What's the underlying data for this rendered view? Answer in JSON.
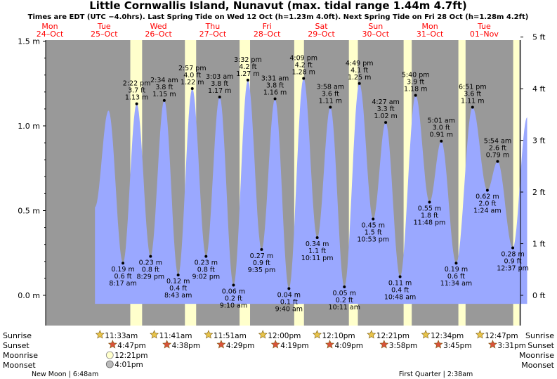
{
  "title": "Little Cornwallis Island, Nunavut (max. tidal range 1.44m 4.7ft)",
  "subtitle": "Times are EDT (UTC −4.0hrs). Last Spring Tide on Wed 12 Oct (h=1.23m 4.0ft). Next Spring Tide on Fri 28 Oct (h=1.28m 4.2ft)",
  "colors": {
    "background": "#999999",
    "day_band": "#ffffcc",
    "tide_fill": "#9aa8ff",
    "day_label": "#ff0000",
    "sun_star": "#e8c44a",
    "sunset_star": "#d9533a"
  },
  "row_labels": {
    "sunrise": "Sunrise",
    "sunset": "Sunset",
    "moonrise": "Moonrise",
    "moonset": "Moonset"
  },
  "moon_phases": [
    {
      "text": "New Moon | 6:48am",
      "day": 0.28
    },
    {
      "text": "First Quarter | 2:38am",
      "day": 7.11
    }
  ],
  "chart_data": {
    "type": "area",
    "x_unit": "days from Mon 24 Oct 00:00 (EDT)",
    "ylim_m": [
      -0.17,
      1.55
    ],
    "y_ticks_m": [
      "0.0 m",
      "0.5 m",
      "1.0 m",
      "1.5 m"
    ],
    "y_ticks_ft": [
      "0 ft",
      "1 ft",
      "2 ft",
      "3 ft",
      "4 ft",
      "5 ft"
    ],
    "days": [
      {
        "dow": "Mon",
        "date": "24–Oct",
        "sunrise": "",
        "sunset": "",
        "moonrise": "",
        "moonset": ""
      },
      {
        "dow": "Tue",
        "date": "25–Oct",
        "sunrise": "11:33am",
        "sunset": "4:47pm",
        "moonrise": "12:21pm",
        "moonset": "4:01pm"
      },
      {
        "dow": "Wed",
        "date": "26–Oct",
        "sunrise": "11:41am",
        "sunset": "4:38pm",
        "moonrise": "",
        "moonset": ""
      },
      {
        "dow": "Thu",
        "date": "27–Oct",
        "sunrise": "11:51am",
        "sunset": "4:29pm",
        "moonrise": "",
        "moonset": ""
      },
      {
        "dow": "Fri",
        "date": "28–Oct",
        "sunrise": "12:00pm",
        "sunset": "4:19pm",
        "moonrise": "",
        "moonset": ""
      },
      {
        "dow": "Sat",
        "date": "29–Oct",
        "sunrise": "12:10pm",
        "sunset": "4:09pm",
        "moonrise": "",
        "moonset": ""
      },
      {
        "dow": "Sun",
        "date": "30–Oct",
        "sunrise": "12:21pm",
        "sunset": "3:58pm",
        "moonrise": "",
        "moonset": ""
      },
      {
        "dow": "Mon",
        "date": "31–Oct",
        "sunrise": "12:34pm",
        "sunset": "3:45pm",
        "moonrise": "",
        "moonset": ""
      },
      {
        "dow": "Tue",
        "date": "01–Nov",
        "sunrise": "12:47pm",
        "sunset": "3:31pm",
        "moonrise": "",
        "moonset": ""
      }
    ],
    "daylight": [
      {
        "start": 1.481,
        "end": 1.699
      },
      {
        "start": 2.487,
        "end": 2.694
      },
      {
        "start": 3.494,
        "end": 3.687
      },
      {
        "start": 4.5,
        "end": 4.68
      },
      {
        "start": 5.507,
        "end": 5.673
      },
      {
        "start": 6.515,
        "end": 6.665
      },
      {
        "start": 7.524,
        "end": 7.656
      },
      {
        "start": 8.533,
        "end": 8.646
      }
    ],
    "tides": [
      {
        "t": 1.346,
        "h": 0.19,
        "m": "0.19 m",
        "ft": "0.6 ft",
        "time": "8:17 am",
        "kind": "low"
      },
      {
        "t": 1.599,
        "h": 1.13,
        "m": "1.13 m",
        "ft": "3.7 ft",
        "time": "2:22 pm",
        "kind": "high"
      },
      {
        "t": 1.854,
        "h": 0.23,
        "m": "0.23 m",
        "ft": "0.8 ft",
        "time": "8:29 pm",
        "kind": "low"
      },
      {
        "t": 2.107,
        "h": 1.15,
        "m": "1.15 m",
        "ft": "3.8 ft",
        "time": "2:34 am",
        "kind": "high"
      },
      {
        "t": 2.363,
        "h": 0.12,
        "m": "0.12 m",
        "ft": "0.4 ft",
        "time": "8:43 am",
        "kind": "low"
      },
      {
        "t": 2.623,
        "h": 1.22,
        "m": "1.22 m",
        "ft": "4.0 ft",
        "time": "2:57 pm",
        "kind": "high"
      },
      {
        "t": 2.876,
        "h": 0.23,
        "m": "0.23 m",
        "ft": "0.8 ft",
        "time": "9:02 pm",
        "kind": "low"
      },
      {
        "t": 3.127,
        "h": 1.17,
        "m": "1.17 m",
        "ft": "3.8 ft",
        "time": "3:03 am",
        "kind": "high"
      },
      {
        "t": 3.382,
        "h": 0.06,
        "m": "0.06 m",
        "ft": "0.2 ft",
        "time": "9:10 am",
        "kind": "low"
      },
      {
        "t": 3.647,
        "h": 1.27,
        "m": "1.27 m",
        "ft": "4.2 ft",
        "time": "3:32 pm",
        "kind": "high"
      },
      {
        "t": 3.899,
        "h": 0.27,
        "m": "0.27 m",
        "ft": "0.9 ft",
        "time": "9:35 pm",
        "kind": "low"
      },
      {
        "t": 4.147,
        "h": 1.16,
        "m": "1.16 m",
        "ft": "3.8 ft",
        "time": "3:31 am",
        "kind": "high"
      },
      {
        "t": 4.403,
        "h": 0.04,
        "m": "0.04 m",
        "ft": "0.1 ft",
        "time": "9:40 am",
        "kind": "low"
      },
      {
        "t": 4.673,
        "h": 1.28,
        "m": "1.28 m",
        "ft": "4.2 ft",
        "time": "4:09 pm",
        "kind": "high"
      },
      {
        "t": 4.924,
        "h": 0.34,
        "m": "0.34 m",
        "ft": "1.1 ft",
        "time": "10:11 pm",
        "kind": "low"
      },
      {
        "t": 5.166,
        "h": 1.11,
        "m": "1.11 m",
        "ft": "3.6 ft",
        "time": "3:58 am",
        "kind": "high"
      },
      {
        "t": 5.424,
        "h": 0.05,
        "m": "0.05 m",
        "ft": "0.2 ft",
        "time": "10:11 am",
        "kind": "low"
      },
      {
        "t": 5.701,
        "h": 1.25,
        "m": "1.25 m",
        "ft": "4.1 ft",
        "time": "4:49 pm",
        "kind": "high"
      },
      {
        "t": 5.954,
        "h": 0.45,
        "m": "0.45 m",
        "ft": "1.5 ft",
        "time": "10:53 pm",
        "kind": "low"
      },
      {
        "t": 6.185,
        "h": 1.02,
        "m": "1.02 m",
        "ft": "3.3 ft",
        "time": "4:27 am",
        "kind": "high"
      },
      {
        "t": 6.45,
        "h": 0.11,
        "m": "0.11 m",
        "ft": "0.4 ft",
        "time": "10:48 am",
        "kind": "low"
      },
      {
        "t": 6.736,
        "h": 1.18,
        "m": "1.18 m",
        "ft": "3.9 ft",
        "time": "5:40 pm",
        "kind": "high"
      },
      {
        "t": 6.992,
        "h": 0.55,
        "m": "0.55 m",
        "ft": "1.8 ft",
        "time": "11:48 pm",
        "kind": "low"
      },
      {
        "t": 7.209,
        "h": 0.91,
        "m": "0.91 m",
        "ft": "3.0 ft",
        "time": "5:01 am",
        "kind": "high"
      },
      {
        "t": 7.483,
        "h": 0.19,
        "m": "0.19 m",
        "ft": "0.6 ft",
        "time": "11:34 am",
        "kind": "low"
      },
      {
        "t": 7.785,
        "h": 1.11,
        "m": "1.11 m",
        "ft": "3.6 ft",
        "time": "6:51 pm",
        "kind": "high"
      },
      {
        "t": 8.058,
        "h": 0.62,
        "m": "0.62 m",
        "ft": "2.0 ft",
        "time": "1:24 am",
        "kind": "low"
      },
      {
        "t": 8.246,
        "h": 0.79,
        "m": "0.79 m",
        "ft": "2.6 ft",
        "time": "5:54 am",
        "kind": "high"
      },
      {
        "t": 8.526,
        "h": 0.28,
        "m": "0.28 m",
        "ft": "0.9 ft",
        "time": "12:37 pm",
        "kind": "low"
      }
    ],
    "edge_points": [
      {
        "t": 0.83,
        "h": 0.52
      },
      {
        "t": 1.08,
        "h": 1.09
      },
      {
        "t": 8.79,
        "h": 1.05
      }
    ]
  }
}
